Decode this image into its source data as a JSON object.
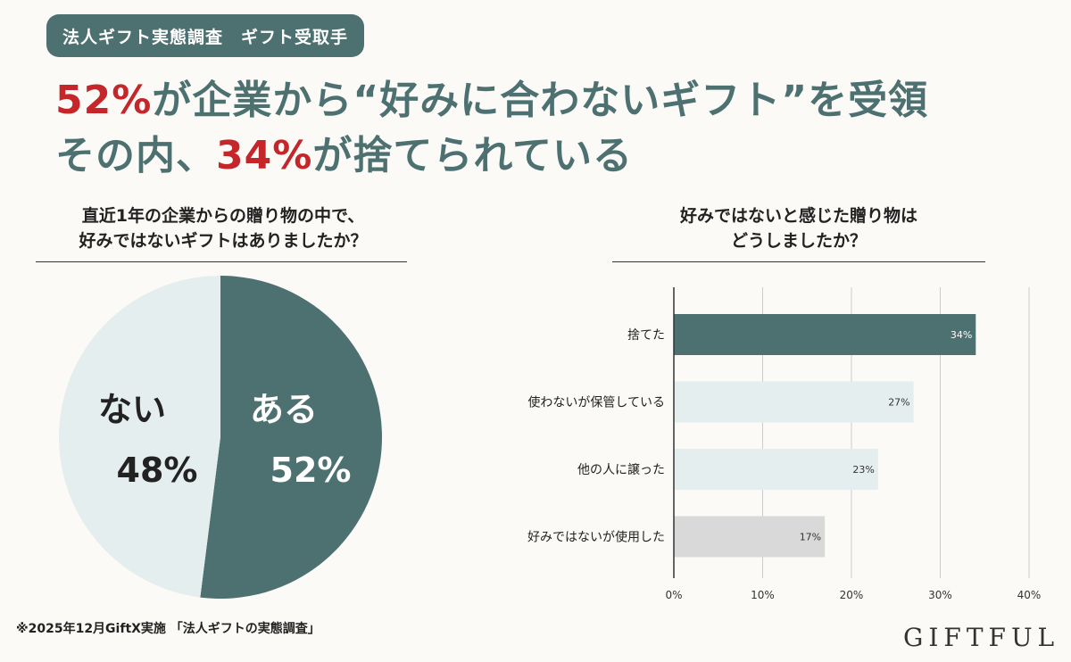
{
  "badge": "法人ギフト実態調査　ギフト受取手",
  "headline": {
    "line1_pct": "52%",
    "line1_rest": "が企業から“好みに合わないギフト”を受領",
    "line2_pre": "その内、",
    "line2_pct": "34%",
    "line2_rest": "が捨てられている"
  },
  "colors": {
    "accent": "#4d7170",
    "highlight": "#c4262a",
    "light": "#e5eeee",
    "gray": "#d9d9d9",
    "background": "#fcfaf7"
  },
  "chart_data": [
    {
      "type": "pie",
      "title": "直近1年の企業からの贈り物の中で、\n好みではないギフトはありましたか？",
      "title_lines": [
        "直近1年の企業からの贈り物の中で、",
        "好みではないギフトはありましたか？"
      ],
      "slices": [
        {
          "label": "ある",
          "value": 52,
          "display": "52%",
          "color": "#4d7170"
        },
        {
          "label": "ない",
          "value": 48,
          "display": "48%",
          "color": "#e5eeee"
        }
      ]
    },
    {
      "type": "bar",
      "orientation": "horizontal",
      "title_lines": [
        "好みではないと感じた贈り物は",
        "どうしましたか？"
      ],
      "categories": [
        "捨てた",
        "使わないが保管している",
        "他の人に譲った",
        "好みではないが使用した"
      ],
      "values": [
        34,
        27,
        23,
        17
      ],
      "labels": [
        "34%",
        "27%",
        "23%",
        "17%"
      ],
      "colors": [
        "#4d7170",
        "#e5eeee",
        "#e5eeee",
        "#d9d9d9"
      ],
      "xlim": [
        0,
        40
      ],
      "xticks": [
        "0%",
        "10%",
        "20%",
        "30%",
        "40%"
      ],
      "grid": true
    }
  ],
  "footnote": "※2025年12月GiftX実施 「法人ギフトの実態調査」",
  "logo": "GIFTFUL"
}
